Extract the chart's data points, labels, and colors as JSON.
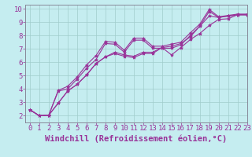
{
  "xlabel": "Windchill (Refroidissement éolien,°C)",
  "xlim": [
    -0.5,
    23
  ],
  "ylim": [
    1.5,
    10.3
  ],
  "xticks": [
    0,
    1,
    2,
    3,
    4,
    5,
    6,
    7,
    8,
    9,
    10,
    11,
    12,
    13,
    14,
    15,
    16,
    17,
    18,
    19,
    20,
    21,
    22,
    23
  ],
  "yticks": [
    2,
    3,
    4,
    5,
    6,
    7,
    8,
    9,
    10
  ],
  "background_color": "#c5edf0",
  "line_color": "#993399",
  "grid_color": "#a0cccc",
  "series": [
    [
      2.45,
      2.0,
      2.05,
      3.9,
      4.2,
      4.9,
      5.8,
      6.5,
      7.55,
      7.5,
      6.9,
      7.8,
      7.8,
      7.2,
      7.2,
      7.35,
      7.5,
      8.2,
      8.85,
      9.95,
      9.4,
      9.5,
      9.6,
      9.6
    ],
    [
      2.45,
      2.0,
      2.05,
      3.85,
      4.0,
      4.75,
      5.55,
      6.2,
      7.4,
      7.35,
      6.75,
      7.65,
      7.65,
      7.05,
      7.05,
      7.05,
      7.3,
      8.0,
      8.7,
      9.8,
      9.35,
      9.45,
      9.55,
      9.55
    ],
    [
      2.45,
      2.0,
      2.05,
      2.95,
      3.85,
      4.35,
      5.05,
      5.9,
      6.4,
      6.75,
      6.55,
      6.45,
      6.75,
      6.75,
      7.1,
      6.55,
      7.1,
      7.7,
      8.15,
      8.75,
      9.2,
      9.25,
      9.55,
      9.55
    ],
    [
      2.45,
      2.0,
      2.05,
      2.95,
      3.85,
      4.35,
      5.05,
      5.9,
      6.4,
      6.65,
      6.45,
      6.35,
      6.65,
      6.65,
      7.1,
      7.2,
      7.4,
      7.9,
      8.7,
      9.45,
      9.35,
      9.45,
      9.55,
      9.55
    ]
  ],
  "font_color": "#993399",
  "xlabel_fontsize": 7.5,
  "tick_fontsize": 6.5,
  "marker": "*",
  "markersize": 3,
  "linewidth": 0.8
}
